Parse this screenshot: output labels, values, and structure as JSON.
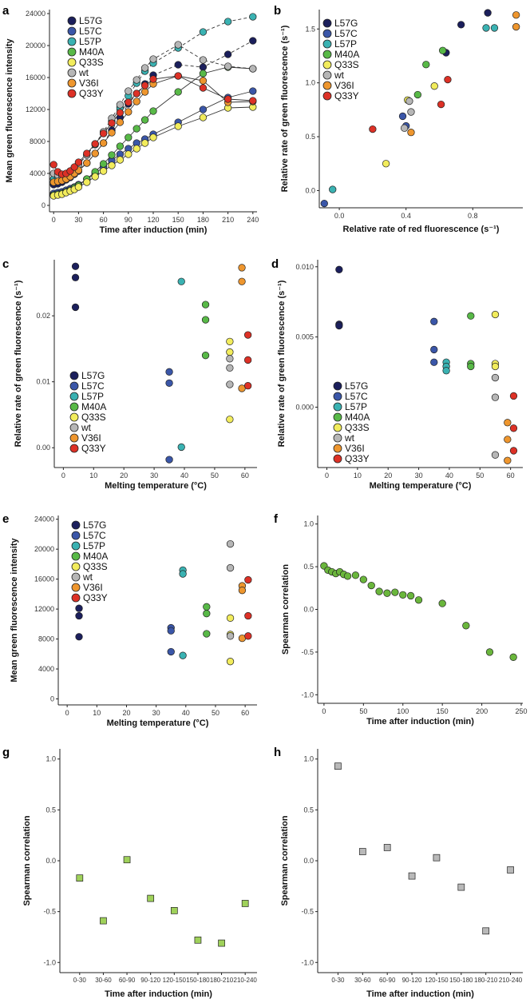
{
  "colors": {
    "L57G": "#1b1f5c",
    "L57C": "#3a56a8",
    "L57P": "#3ab2b2",
    "M40A": "#58b947",
    "Q33S": "#f2ec5c",
    "wt": "#b6b6b6",
    "V36I": "#ee962e",
    "Q33Y": "#dd3126",
    "f_marker": "#6ab63c",
    "g_marker": "#9fd15a",
    "h_marker": "#b9b9b9"
  },
  "chart_data": [
    {
      "id": "a",
      "panel_label": "a",
      "type": "line",
      "xlabel": "Time after induction (min)",
      "ylabel": "Mean green fluorescence intensity",
      "xlim": [
        -5,
        245
      ],
      "ylim": [
        -800,
        24500
      ],
      "xticks": [
        0,
        30,
        60,
        90,
        120,
        150,
        180,
        210,
        240
      ],
      "yticks": [
        0,
        4000,
        8000,
        12000,
        16000,
        20000,
        24000
      ],
      "legend": [
        "L57G",
        "L57C",
        "L57P",
        "M40A",
        "Q33S",
        "wt",
        "V36I",
        "Q33Y"
      ],
      "legend_position": "top-left",
      "x": [
        0,
        5,
        10,
        15,
        20,
        25,
        30,
        40,
        50,
        60,
        70,
        80,
        90,
        100,
        110,
        120,
        150,
        180,
        210,
        240
      ],
      "series": [
        {
          "name": "L57G",
          "dashed": true,
          "values": [
            2600,
            2700,
            2900,
            3200,
            3500,
            3900,
            4300,
            5300,
            6500,
            7800,
            9400,
            11000,
            12700,
            14000,
            15200,
            16300,
            17600,
            17300,
            18900,
            20600
          ]
        },
        {
          "name": "L57C",
          "values": [
            1500,
            1600,
            1700,
            1900,
            2100,
            2300,
            2600,
            3300,
            4000,
            4800,
            5600,
            6400,
            7100,
            7800,
            8300,
            8900,
            10400,
            12000,
            13500,
            14300
          ]
        },
        {
          "name": "L57P",
          "dashed": true,
          "values": [
            3300,
            3400,
            3600,
            3900,
            4300,
            4700,
            5200,
            6300,
            7600,
            9000,
            10500,
            12200,
            13700,
            15300,
            16800,
            17800,
            19700,
            21700,
            23000,
            23600
          ]
        },
        {
          "name": "M40A",
          "values": [
            1300,
            1400,
            1500,
            1700,
            1900,
            2200,
            2500,
            3300,
            4200,
            5200,
            6300,
            7400,
            8500,
            9600,
            10700,
            11800,
            14200,
            16500,
            17300,
            17100
          ]
        },
        {
          "name": "Q33S",
          "values": [
            1200,
            1300,
            1400,
            1600,
            1800,
            2000,
            2300,
            2900,
            3600,
            4300,
            5000,
            5700,
            6400,
            7100,
            7800,
            8500,
            9900,
            11000,
            12200,
            12300
          ]
        },
        {
          "name": "wt",
          "dashed": true,
          "values": [
            4000,
            3800,
            3700,
            3900,
            4200,
            4600,
            5100,
            6300,
            7700,
            9200,
            10900,
            12600,
            14300,
            15700,
            17200,
            18300,
            20100,
            18200,
            17400,
            17100
          ]
        },
        {
          "name": "V36I",
          "values": [
            2900,
            3000,
            3100,
            3300,
            3600,
            4000,
            4400,
            5300,
            6500,
            7800,
            9100,
            10400,
            11700,
            13000,
            14200,
            15200,
            16200,
            15600,
            12900,
            13000
          ]
        },
        {
          "name": "Q33Y",
          "values": [
            5100,
            4200,
            3900,
            4000,
            4300,
            4800,
            5400,
            6500,
            7700,
            9000,
            10300,
            11600,
            12900,
            14000,
            15000,
            15800,
            16200,
            14700,
            13300,
            13100
          ]
        }
      ]
    },
    {
      "id": "b",
      "panel_label": "b",
      "type": "scatter",
      "xlabel": "Relative rate of red fluorescence (s⁻¹)",
      "ylabel": "Relative rate of green fluorescence (s⁻¹)",
      "xlim": [
        -0.12,
        1.1
      ],
      "ylim": [
        -0.16,
        1.68
      ],
      "xticks": [
        0,
        0.4,
        0.8
      ],
      "xtick_labels": [
        "0.0",
        "0.4",
        "0.8"
      ],
      "yticks": [
        0,
        0.5,
        1.0,
        1.5
      ],
      "ytick_labels": [
        "0.0",
        "0.5",
        "1.0",
        "1.5"
      ],
      "legend": [
        "L57G",
        "L57C",
        "L57P",
        "M40A",
        "Q33S",
        "wt",
        "V36I",
        "Q33Y"
      ],
      "legend_position": "top-left",
      "points": [
        {
          "g": "L57G",
          "x": 0.73,
          "y": 1.54
        },
        {
          "g": "L57G",
          "x": 0.89,
          "y": 1.65
        },
        {
          "g": "L57G",
          "x": 0.64,
          "y": 1.28
        },
        {
          "g": "L57C",
          "x": -0.09,
          "y": -0.12
        },
        {
          "g": "L57C",
          "x": 0.38,
          "y": 0.69
        },
        {
          "g": "L57C",
          "x": 0.4,
          "y": 0.6
        },
        {
          "g": "L57P",
          "x": -0.04,
          "y": 0.01
        },
        {
          "g": "L57P",
          "x": 0.88,
          "y": 1.51
        },
        {
          "g": "L57P",
          "x": 0.93,
          "y": 1.51
        },
        {
          "g": "M40A",
          "x": 0.47,
          "y": 0.89
        },
        {
          "g": "M40A",
          "x": 0.52,
          "y": 1.17
        },
        {
          "g": "M40A",
          "x": 0.62,
          "y": 1.3
        },
        {
          "g": "Q33S",
          "x": 0.28,
          "y": 0.25
        },
        {
          "g": "Q33S",
          "x": 0.41,
          "y": 0.84
        },
        {
          "g": "Q33S",
          "x": 0.57,
          "y": 0.97
        },
        {
          "g": "wt",
          "x": 0.39,
          "y": 0.58
        },
        {
          "g": "wt",
          "x": 0.43,
          "y": 0.73
        },
        {
          "g": "wt",
          "x": 0.42,
          "y": 0.83
        },
        {
          "g": "V36I",
          "x": 0.43,
          "y": 0.54
        },
        {
          "g": "V36I",
          "x": 1.06,
          "y": 1.63
        },
        {
          "g": "V36I",
          "x": 1.06,
          "y": 1.52
        },
        {
          "g": "Q33Y",
          "x": 0.2,
          "y": 0.57
        },
        {
          "g": "Q33Y",
          "x": 0.61,
          "y": 0.8
        },
        {
          "g": "Q33Y",
          "x": 0.65,
          "y": 1.03
        }
      ]
    },
    {
      "id": "c",
      "panel_label": "c",
      "type": "scatter",
      "xlabel": "Melting temperature (°C)",
      "ylabel": "Relative rate of green fluorescence (s⁻¹)",
      "xlim": [
        -3,
        64
      ],
      "ylim": [
        -0.003,
        0.0285
      ],
      "xticks": [
        0,
        10,
        20,
        30,
        40,
        50,
        60
      ],
      "yticks": [
        0,
        0.01,
        0.02
      ],
      "ytick_labels": [
        "0.00",
        "0.01",
        "0.02"
      ],
      "legend": [
        "L57G",
        "L57C",
        "L57P",
        "M40A",
        "Q33S",
        "wt",
        "V36I",
        "Q33Y"
      ],
      "legend_position": "bottom-left",
      "points": [
        {
          "g": "L57G",
          "x": 4,
          "y": 0.0275
        },
        {
          "g": "L57G",
          "x": 4,
          "y": 0.0258
        },
        {
          "g": "L57G",
          "x": 4,
          "y": 0.0213
        },
        {
          "g": "L57C",
          "x": 35,
          "y": 0.0115
        },
        {
          "g": "L57C",
          "x": 35,
          "y": 0.0098
        },
        {
          "g": "L57C",
          "x": 35,
          "y": -0.0018
        },
        {
          "g": "L57P",
          "x": 39,
          "y": 0.0252
        },
        {
          "g": "L57P",
          "x": 39,
          "y": 0.0001
        },
        {
          "g": "M40A",
          "x": 47,
          "y": 0.0217
        },
        {
          "g": "M40A",
          "x": 47,
          "y": 0.0194
        },
        {
          "g": "M40A",
          "x": 47,
          "y": 0.014
        },
        {
          "g": "Q33S",
          "x": 55,
          "y": 0.0161
        },
        {
          "g": "Q33S",
          "x": 55,
          "y": 0.0145
        },
        {
          "g": "Q33S",
          "x": 55,
          "y": 0.0043
        },
        {
          "g": "wt",
          "x": 55,
          "y": 0.0135
        },
        {
          "g": "wt",
          "x": 55,
          "y": 0.0121
        },
        {
          "g": "wt",
          "x": 55,
          "y": 0.0096
        },
        {
          "g": "V36I",
          "x": 59,
          "y": 0.0273
        },
        {
          "g": "V36I",
          "x": 59,
          "y": 0.0252
        },
        {
          "g": "V36I",
          "x": 59,
          "y": 0.009
        },
        {
          "g": "Q33Y",
          "x": 61,
          "y": 0.0171
        },
        {
          "g": "Q33Y",
          "x": 61,
          "y": 0.0133
        },
        {
          "g": "Q33Y",
          "x": 61,
          "y": 0.0094
        }
      ]
    },
    {
      "id": "d",
      "panel_label": "d",
      "type": "scatter",
      "xlabel": "Melting temperature (°C)",
      "ylabel": "Relative rate of green fluorescence (s⁻¹)",
      "xlim": [
        -3,
        64
      ],
      "ylim": [
        -0.0043,
        0.0105
      ],
      "xticks": [
        0,
        10,
        20,
        30,
        40,
        50,
        60
      ],
      "yticks": [
        0,
        0.005,
        0.01
      ],
      "ytick_labels": [
        "0.000",
        "0.005",
        "0.010"
      ],
      "legend": [
        "L57G",
        "L57C",
        "L57P",
        "M40A",
        "Q33S",
        "wt",
        "V36I",
        "Q33Y"
      ],
      "legend_position": "bottom-left",
      "points": [
        {
          "g": "L57G",
          "x": 4,
          "y": 0.0098
        },
        {
          "g": "L57G",
          "x": 4,
          "y": 0.0059
        },
        {
          "g": "L57G",
          "x": 4,
          "y": 0.0058
        },
        {
          "g": "L57C",
          "x": 35,
          "y": 0.0061
        },
        {
          "g": "L57C",
          "x": 35,
          "y": 0.0041
        },
        {
          "g": "L57C",
          "x": 35,
          "y": 0.0032
        },
        {
          "g": "L57P",
          "x": 39,
          "y": 0.0032
        },
        {
          "g": "L57P",
          "x": 39,
          "y": 0.0029
        },
        {
          "g": "L57P",
          "x": 39,
          "y": 0.0026
        },
        {
          "g": "M40A",
          "x": 47,
          "y": 0.0065
        },
        {
          "g": "M40A",
          "x": 47,
          "y": 0.0031
        },
        {
          "g": "M40A",
          "x": 47,
          "y": 0.0029
        },
        {
          "g": "Q33S",
          "x": 55,
          "y": 0.0066
        },
        {
          "g": "Q33S",
          "x": 55,
          "y": 0.0031
        },
        {
          "g": "Q33S",
          "x": 55,
          "y": 0.0029
        },
        {
          "g": "wt",
          "x": 55,
          "y": 0.0021
        },
        {
          "g": "wt",
          "x": 55,
          "y": 0.0007
        },
        {
          "g": "wt",
          "x": 55,
          "y": -0.0034
        },
        {
          "g": "V36I",
          "x": 59,
          "y": -0.0011
        },
        {
          "g": "V36I",
          "x": 59,
          "y": -0.0023
        },
        {
          "g": "V36I",
          "x": 59,
          "y": -0.0038
        },
        {
          "g": "Q33Y",
          "x": 61,
          "y": 0.0008
        },
        {
          "g": "Q33Y",
          "x": 61,
          "y": -0.0015
        },
        {
          "g": "Q33Y",
          "x": 61,
          "y": -0.0031
        }
      ]
    },
    {
      "id": "e",
      "panel_label": "e",
      "type": "scatter",
      "xlabel": "Melting temperature (°C)",
      "ylabel": "Mean green fluorescence intensity",
      "xlim": [
        -3,
        64
      ],
      "ylim": [
        -800,
        24500
      ],
      "xticks": [
        0,
        10,
        20,
        30,
        40,
        50,
        60
      ],
      "yticks": [
        0,
        4000,
        8000,
        12000,
        16000,
        20000,
        24000
      ],
      "legend": [
        "L57G",
        "L57C",
        "L57P",
        "M40A",
        "Q33S",
        "wt",
        "V36I",
        "Q33Y"
      ],
      "legend_position": "top-left",
      "points": [
        {
          "g": "L57G",
          "x": 4,
          "y": 12100
        },
        {
          "g": "L57G",
          "x": 4,
          "y": 11100
        },
        {
          "g": "L57G",
          "x": 4,
          "y": 8300
        },
        {
          "g": "L57C",
          "x": 35,
          "y": 9500
        },
        {
          "g": "L57C",
          "x": 35,
          "y": 9100
        },
        {
          "g": "L57C",
          "x": 35,
          "y": 6300
        },
        {
          "g": "L57P",
          "x": 39,
          "y": 17200
        },
        {
          "g": "L57P",
          "x": 39,
          "y": 16700
        },
        {
          "g": "L57P",
          "x": 39,
          "y": 5800
        },
        {
          "g": "M40A",
          "x": 47,
          "y": 12300
        },
        {
          "g": "M40A",
          "x": 47,
          "y": 11400
        },
        {
          "g": "M40A",
          "x": 47,
          "y": 8700
        },
        {
          "g": "Q33S",
          "x": 55,
          "y": 10800
        },
        {
          "g": "Q33S",
          "x": 55,
          "y": 8600
        },
        {
          "g": "Q33S",
          "x": 55,
          "y": 5000
        },
        {
          "g": "wt",
          "x": 55,
          "y": 20700
        },
        {
          "g": "wt",
          "x": 55,
          "y": 17500
        },
        {
          "g": "wt",
          "x": 55,
          "y": 8400
        },
        {
          "g": "V36I",
          "x": 59,
          "y": 15100
        },
        {
          "g": "V36I",
          "x": 59,
          "y": 14500
        },
        {
          "g": "V36I",
          "x": 59,
          "y": 8100
        },
        {
          "g": "Q33Y",
          "x": 61,
          "y": 15900
        },
        {
          "g": "Q33Y",
          "x": 61,
          "y": 11100
        },
        {
          "g": "Q33Y",
          "x": 61,
          "y": 8400
        }
      ]
    },
    {
      "id": "f",
      "panel_label": "f",
      "type": "scatter",
      "xlabel": "Time after induction (min)",
      "ylabel": "Spearman correlation",
      "xlim": [
        -8,
        252
      ],
      "ylim": [
        -1.1,
        1.1
      ],
      "xticks": [
        0,
        50,
        100,
        150,
        200,
        250
      ],
      "yticks": [
        -1.0,
        -0.5,
        0.0,
        0.5,
        1.0
      ],
      "ytick_labels": [
        "-1.0",
        "-0.5",
        "0.0",
        "0.5",
        "1.0"
      ],
      "marker": "circle",
      "x": [
        0,
        5,
        10,
        15,
        20,
        25,
        30,
        40,
        50,
        60,
        70,
        80,
        90,
        100,
        110,
        120,
        150,
        180,
        210,
        240
      ],
      "values": [
        0.51,
        0.46,
        0.44,
        0.42,
        0.44,
        0.41,
        0.39,
        0.4,
        0.35,
        0.28,
        0.21,
        0.19,
        0.2,
        0.17,
        0.16,
        0.11,
        0.07,
        -0.19,
        -0.5,
        -0.56
      ]
    },
    {
      "id": "g",
      "panel_label": "g",
      "type": "scatter",
      "xlabel": "Time after induction (min)",
      "ylabel": "Spearman correlation",
      "ylim": [
        -1.1,
        1.1
      ],
      "categories": [
        "0-30",
        "30-60",
        "60-90",
        "90-120",
        "120-150",
        "150-180",
        "180-210",
        "210-240"
      ],
      "yticks": [
        -1.0,
        -0.5,
        0.0,
        0.5,
        1.0
      ],
      "ytick_labels": [
        "-1.0",
        "-0.5",
        "0.0",
        "0.5",
        "1.0"
      ],
      "marker": "square",
      "values": [
        -0.17,
        -0.59,
        0.01,
        -0.37,
        -0.49,
        -0.78,
        -0.81,
        -0.42
      ]
    },
    {
      "id": "h",
      "panel_label": "h",
      "type": "scatter",
      "xlabel": "Time after induction (min)",
      "ylabel": "Spearman correlation",
      "ylim": [
        -1.1,
        1.1
      ],
      "categories": [
        "0-30",
        "30-60",
        "60-90",
        "90-120",
        "120-150",
        "150-180",
        "180-210",
        "210-240"
      ],
      "yticks": [
        -1.0,
        -0.5,
        0.0,
        0.5,
        1.0
      ],
      "ytick_labels": [
        "-1.0",
        "-0.5",
        "0.0",
        "0.5",
        "1.0"
      ],
      "marker": "square",
      "values": [
        0.93,
        0.09,
        0.13,
        -0.15,
        0.03,
        -0.26,
        -0.69,
        -0.09
      ]
    }
  ]
}
